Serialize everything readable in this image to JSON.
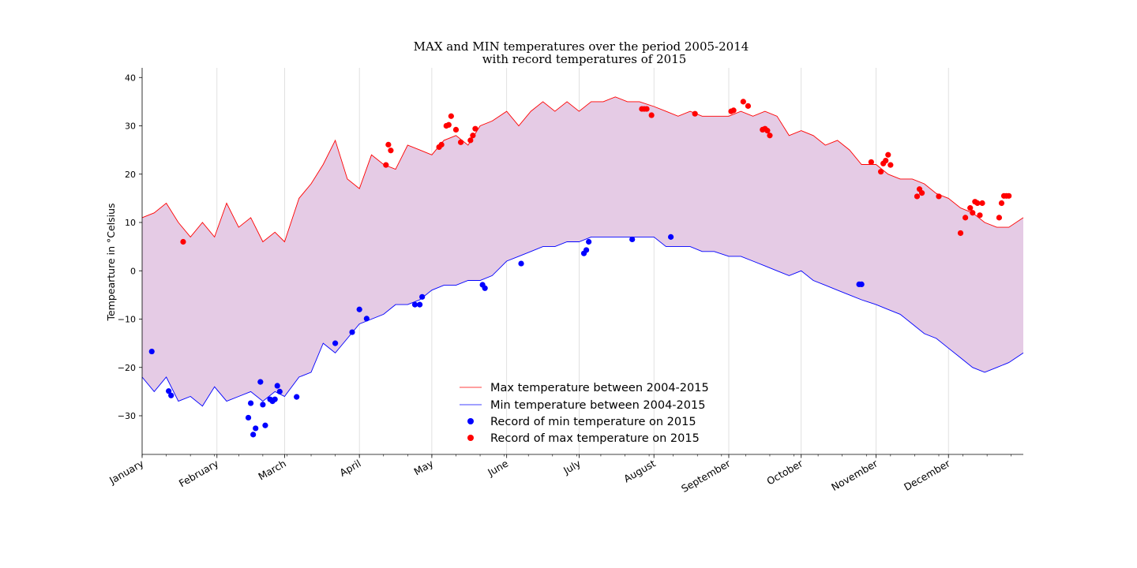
{
  "chart_data": {
    "type": "line",
    "title": "MAX and MIN temperatures over the period 2005-2014",
    "subtitle": "with record temperatures of 2015",
    "xlabel": "",
    "ylabel": "Tempearture in °Celsius",
    "ylim": [
      -38,
      42
    ],
    "yticks": [
      -30,
      -20,
      -10,
      0,
      10,
      20,
      30,
      40
    ],
    "ytick_labels": [
      "−30",
      "−20",
      "−10",
      "0",
      "10",
      "20",
      "30",
      "40"
    ],
    "xlim": [
      0,
      365
    ],
    "month_starts": [
      0,
      31,
      59,
      90,
      120,
      151,
      181,
      212,
      243,
      273,
      304,
      334
    ],
    "month_labels": [
      "January",
      "February",
      "March",
      "April",
      "May",
      "June",
      "July",
      "August",
      "September",
      "October",
      "November",
      "December"
    ],
    "grid": "vertical at month starts",
    "legend_position": "lower center",
    "colors": {
      "max_line": "#ff0000",
      "min_line": "#0000ff",
      "fill": "#e5cbe5",
      "record_min": "#0000ff",
      "record_max": "#ff0000"
    },
    "series": [
      {
        "name": "Max temperature between 2004-2015",
        "kind": "line",
        "x": [
          0,
          5,
          10,
          15,
          20,
          25,
          30,
          35,
          40,
          45,
          50,
          55,
          59,
          65,
          70,
          75,
          80,
          85,
          90,
          95,
          100,
          105,
          110,
          115,
          120,
          125,
          130,
          135,
          140,
          145,
          151,
          156,
          161,
          166,
          171,
          176,
          181,
          186,
          191,
          196,
          201,
          206,
          212,
          217,
          222,
          227,
          232,
          237,
          243,
          248,
          253,
          258,
          263,
          268,
          273,
          278,
          283,
          288,
          293,
          298,
          304,
          309,
          314,
          319,
          324,
          329,
          334,
          339,
          344,
          349,
          354,
          359,
          365
        ],
        "y": [
          11,
          12,
          14,
          10,
          7,
          10,
          7,
          14,
          9,
          11,
          6,
          8,
          6,
          15,
          18,
          22,
          27,
          19,
          17,
          24,
          22,
          21,
          26,
          25,
          24,
          27,
          28,
          26,
          30,
          31,
          33,
          30,
          33,
          35,
          33,
          35,
          33,
          35,
          35,
          36,
          35,
          35,
          34,
          33,
          32,
          33,
          32,
          32,
          32,
          33,
          32,
          33,
          32,
          28,
          29,
          28,
          26,
          27,
          25,
          22,
          22,
          20,
          19,
          19,
          18,
          16,
          15,
          13,
          12,
          10,
          9,
          9,
          11
        ]
      },
      {
        "name": "Min temperature between 2004-2015",
        "kind": "line",
        "x": [
          0,
          5,
          10,
          15,
          20,
          25,
          30,
          35,
          40,
          45,
          50,
          55,
          59,
          65,
          70,
          75,
          80,
          85,
          90,
          95,
          100,
          105,
          110,
          115,
          120,
          125,
          130,
          135,
          140,
          145,
          151,
          156,
          161,
          166,
          171,
          176,
          181,
          186,
          191,
          196,
          201,
          206,
          212,
          217,
          222,
          227,
          232,
          237,
          243,
          248,
          253,
          258,
          263,
          268,
          273,
          278,
          283,
          288,
          293,
          298,
          304,
          309,
          314,
          319,
          324,
          329,
          334,
          339,
          344,
          349,
          354,
          359,
          365
        ],
        "y": [
          -22,
          -25,
          -22,
          -27,
          -26,
          -28,
          -24,
          -27,
          -26,
          -25,
          -27,
          -25,
          -26,
          -22,
          -21,
          -15,
          -17,
          -14,
          -11,
          -10,
          -9,
          -7,
          -7,
          -6,
          -4,
          -3,
          -3,
          -2,
          -2,
          -1,
          2,
          3,
          4,
          5,
          5,
          6,
          6,
          7,
          7,
          7,
          7,
          7,
          7,
          5,
          5,
          5,
          4,
          4,
          3,
          3,
          2,
          1,
          0,
          -1,
          0,
          -2,
          -3,
          -4,
          -5,
          -6,
          -7,
          -8,
          -9,
          -11,
          -13,
          -14,
          -16,
          -18,
          -20,
          -21,
          -20,
          -19,
          -17
        ]
      },
      {
        "name": "Record of min temperature on 2015",
        "kind": "scatter",
        "x": [
          4,
          11,
          12,
          44,
          45,
          46,
          47,
          49,
          50,
          51,
          53,
          54,
          55,
          56,
          57,
          64,
          80,
          87,
          90,
          93,
          113,
          115,
          116,
          141,
          142,
          157,
          183,
          184,
          185,
          203,
          219,
          297,
          298
        ],
        "y": [
          -16.7,
          -24.9,
          -25.8,
          -30.4,
          -27.4,
          -33.9,
          -32.6,
          -23.0,
          -27.7,
          -32.0,
          -26.6,
          -27.0,
          -26.6,
          -23.8,
          -25.0,
          -26.1,
          -15.0,
          -12.7,
          -8.0,
          -9.9,
          -7.0,
          -7.0,
          -5.4,
          -2.9,
          -3.6,
          1.5,
          3.6,
          4.3,
          6.0,
          6.5,
          7.0,
          -2.8,
          -2.8
        ]
      },
      {
        "name": "Record of max temperature on 2015",
        "kind": "scatter",
        "x": [
          17,
          101,
          102,
          103,
          123,
          124,
          126,
          127,
          128,
          130,
          132,
          136,
          137,
          138,
          207,
          208,
          209,
          211,
          229,
          244,
          245,
          249,
          251,
          257,
          258,
          259,
          260,
          302,
          306,
          307,
          308,
          309,
          310,
          321,
          322,
          323,
          330,
          339,
          341,
          343,
          344,
          345,
          346,
          347,
          348,
          355,
          356,
          357,
          358,
          359
        ],
        "y": [
          6.0,
          21.9,
          26.1,
          24.9,
          25.6,
          26.1,
          30.0,
          30.2,
          32.0,
          29.2,
          26.6,
          27.0,
          28.0,
          29.4,
          33.5,
          33.5,
          33.5,
          32.2,
          32.5,
          33.0,
          33.2,
          35.0,
          34.1,
          29.2,
          29.4,
          29.0,
          28.0,
          22.5,
          20.5,
          22.2,
          22.8,
          24.0,
          21.9,
          15.4,
          16.9,
          16.1,
          15.4,
          7.8,
          11.0,
          13.0,
          12.0,
          14.3,
          14.0,
          11.5,
          14.0,
          11.0,
          14.0,
          15.5,
          15.5,
          15.5
        ]
      }
    ]
  }
}
